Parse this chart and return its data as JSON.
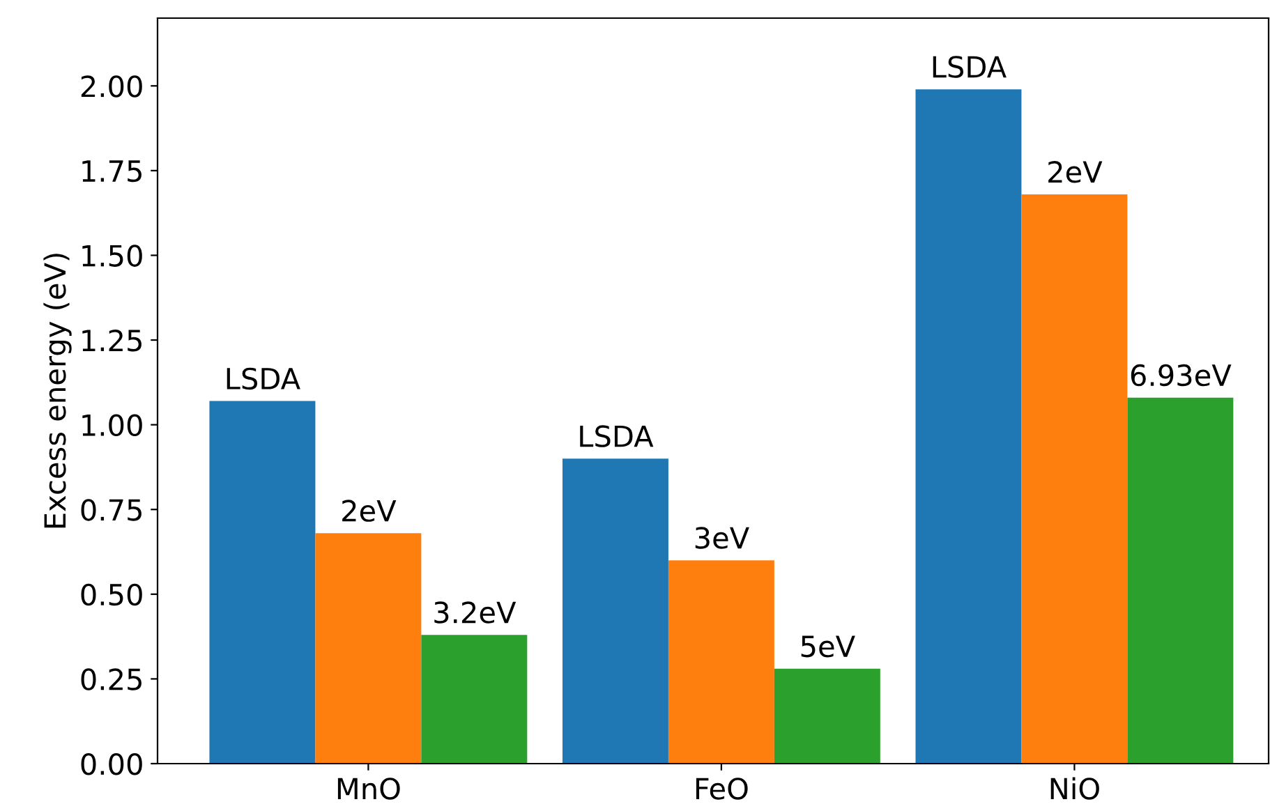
{
  "chart_data": {
    "type": "bar",
    "ylabel": "Excess energy (eV)",
    "categories": [
      "MnO",
      "FeO",
      "NiO"
    ],
    "series": [
      {
        "color": "#1f77b4",
        "values": [
          1.07,
          0.9,
          1.99
        ]
      },
      {
        "color": "#ff7f0e",
        "values": [
          0.68,
          0.6,
          1.68
        ]
      },
      {
        "color": "#2ca02c",
        "values": [
          0.38,
          0.28,
          1.08
        ]
      }
    ],
    "annotations": [
      "LSDA",
      "2eV",
      "3.2eV",
      "LSDA",
      "3eV",
      "5eV",
      "LSDA",
      "2eV",
      "6.93eV"
    ],
    "ylim": [
      0,
      2.2
    ],
    "yticks": [
      {
        "value": 0,
        "label": "0.00"
      },
      {
        "value": 0.25,
        "label": "0.25"
      },
      {
        "value": 0.5,
        "label": "0.50"
      },
      {
        "value": 0.75,
        "label": "0.75"
      },
      {
        "value": 1.0,
        "label": "1.00"
      },
      {
        "value": 1.25,
        "label": "1.25"
      },
      {
        "value": 1.5,
        "label": "1.50"
      },
      {
        "value": 1.75,
        "label": "1.75"
      },
      {
        "value": 2.0,
        "label": "2.00"
      }
    ],
    "grid": false,
    "legend": false
  }
}
